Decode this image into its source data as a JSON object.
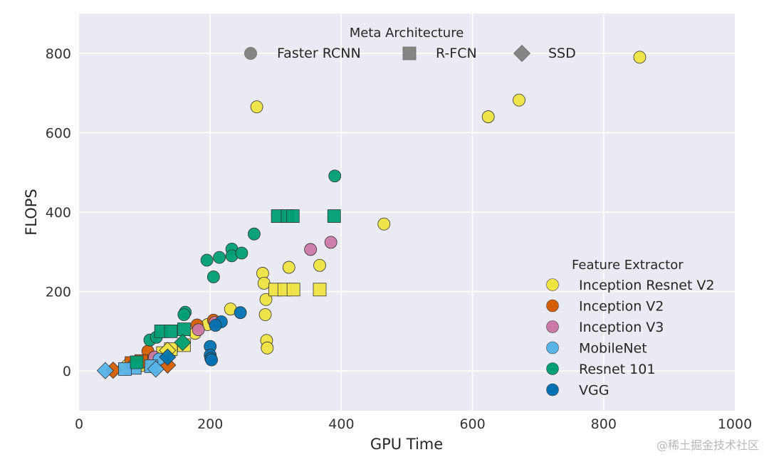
{
  "chart_data": {
    "type": "scatter",
    "title": "",
    "xlabel": "GPU Time",
    "ylabel": "FLOPS",
    "xlim": [
      0,
      1000
    ],
    "ylim": [
      -100,
      900
    ],
    "xticks": [
      0,
      200,
      400,
      600,
      800,
      1000
    ],
    "yticks": [
      0,
      200,
      400,
      600,
      800
    ],
    "grid": true,
    "meta_legend": {
      "title": "Meta Architecture",
      "placement": "top-center",
      "entries": [
        {
          "label": "Faster RCNN",
          "marker": "circle"
        },
        {
          "label": "R-FCN",
          "marker": "square"
        },
        {
          "label": "SSD",
          "marker": "diamond"
        }
      ]
    },
    "feature_legend": {
      "title": "Feature Extractor",
      "placement": "bottom-right",
      "entries": [
        {
          "label": "Inception Resnet V2",
          "color": "#f0e442"
        },
        {
          "label": "Inception V2",
          "color": "#d55e00"
        },
        {
          "label": "Inception V3",
          "color": "#cc79a7"
        },
        {
          "label": "MobileNet",
          "color": "#56b4e9"
        },
        {
          "label": "Resnet 101",
          "color": "#009e73"
        },
        {
          "label": "VGG",
          "color": "#0072b2"
        }
      ]
    },
    "series": [
      {
        "name": "Inception Resnet V2",
        "color": "#f0e442",
        "points": [
          {
            "x": 855,
            "y": 790,
            "m": "circle"
          },
          {
            "x": 671,
            "y": 682,
            "m": "circle"
          },
          {
            "x": 624,
            "y": 640,
            "m": "circle"
          },
          {
            "x": 271,
            "y": 665,
            "m": "circle"
          },
          {
            "x": 465,
            "y": 370,
            "m": "circle"
          },
          {
            "x": 367,
            "y": 266,
            "m": "circle"
          },
          {
            "x": 320,
            "y": 261,
            "m": "circle"
          },
          {
            "x": 280,
            "y": 246,
            "m": "circle"
          },
          {
            "x": 282,
            "y": 221,
            "m": "circle"
          },
          {
            "x": 285,
            "y": 180,
            "m": "circle"
          },
          {
            "x": 284,
            "y": 142,
            "m": "circle"
          },
          {
            "x": 286,
            "y": 77,
            "m": "circle"
          },
          {
            "x": 287,
            "y": 58,
            "m": "circle"
          },
          {
            "x": 231,
            "y": 156,
            "m": "circle"
          },
          {
            "x": 196,
            "y": 117,
            "m": "circle"
          },
          {
            "x": 177,
            "y": 95,
            "m": "circle"
          },
          {
            "x": 299,
            "y": 205,
            "m": "square"
          },
          {
            "x": 313,
            "y": 205,
            "m": "square"
          },
          {
            "x": 327,
            "y": 205,
            "m": "square"
          },
          {
            "x": 367,
            "y": 205,
            "m": "square"
          },
          {
            "x": 160,
            "y": 65,
            "m": "square"
          },
          {
            "x": 140,
            "y": 55,
            "m": "square"
          },
          {
            "x": 128,
            "y": 45,
            "m": "square"
          },
          {
            "x": 105,
            "y": 18,
            "m": "square"
          },
          {
            "x": 90,
            "y": 15,
            "m": "square"
          },
          {
            "x": 72,
            "y": 12,
            "m": "diamond"
          },
          {
            "x": 135,
            "y": 52,
            "m": "diamond"
          }
        ]
      },
      {
        "name": "Inception V2",
        "color": "#d55e00",
        "points": [
          {
            "x": 205,
            "y": 128,
            "m": "circle"
          },
          {
            "x": 180,
            "y": 116,
            "m": "circle"
          },
          {
            "x": 105,
            "y": 50,
            "m": "circle"
          },
          {
            "x": 95,
            "y": 25,
            "m": "square"
          },
          {
            "x": 80,
            "y": 20,
            "m": "square"
          },
          {
            "x": 135,
            "y": 15,
            "m": "diamond"
          },
          {
            "x": 52,
            "y": 2,
            "m": "diamond"
          }
        ]
      },
      {
        "name": "Inception V3",
        "color": "#cc79a7",
        "points": [
          {
            "x": 384,
            "y": 324,
            "m": "circle"
          },
          {
            "x": 353,
            "y": 306,
            "m": "circle"
          },
          {
            "x": 207,
            "y": 122,
            "m": "circle"
          },
          {
            "x": 182,
            "y": 104,
            "m": "circle"
          },
          {
            "x": 115,
            "y": 35,
            "m": "circle"
          }
        ]
      },
      {
        "name": "MobileNet",
        "color": "#56b4e9",
        "points": [
          {
            "x": 122,
            "y": 30,
            "m": "circle"
          },
          {
            "x": 85,
            "y": 8,
            "m": "square"
          },
          {
            "x": 70,
            "y": 5,
            "m": "square"
          },
          {
            "x": 110,
            "y": 12,
            "m": "square"
          },
          {
            "x": 40,
            "y": 1,
            "m": "diamond"
          },
          {
            "x": 117,
            "y": 5,
            "m": "diamond"
          }
        ]
      },
      {
        "name": "Resnet 101",
        "color": "#009e73",
        "points": [
          {
            "x": 390,
            "y": 491,
            "m": "circle"
          },
          {
            "x": 267,
            "y": 345,
            "m": "circle"
          },
          {
            "x": 233,
            "y": 307,
            "m": "circle"
          },
          {
            "x": 233,
            "y": 290,
            "m": "circle"
          },
          {
            "x": 248,
            "y": 297,
            "m": "circle"
          },
          {
            "x": 214,
            "y": 286,
            "m": "circle"
          },
          {
            "x": 195,
            "y": 279,
            "m": "circle"
          },
          {
            "x": 205,
            "y": 237,
            "m": "circle"
          },
          {
            "x": 162,
            "y": 148,
            "m": "circle"
          },
          {
            "x": 160,
            "y": 142,
            "m": "circle"
          },
          {
            "x": 108,
            "y": 78,
            "m": "circle"
          },
          {
            "x": 118,
            "y": 85,
            "m": "circle"
          },
          {
            "x": 303,
            "y": 390,
            "m": "square"
          },
          {
            "x": 318,
            "y": 390,
            "m": "square"
          },
          {
            "x": 326,
            "y": 390,
            "m": "square"
          },
          {
            "x": 389,
            "y": 390,
            "m": "square"
          },
          {
            "x": 125,
            "y": 100,
            "m": "square"
          },
          {
            "x": 140,
            "y": 100,
            "m": "square"
          },
          {
            "x": 160,
            "y": 105,
            "m": "square"
          },
          {
            "x": 88,
            "y": 22,
            "m": "square"
          },
          {
            "x": 158,
            "y": 72,
            "m": "diamond"
          }
        ]
      },
      {
        "name": "VGG",
        "color": "#0072b2",
        "points": [
          {
            "x": 246,
            "y": 147,
            "m": "circle"
          },
          {
            "x": 217,
            "y": 124,
            "m": "circle"
          },
          {
            "x": 208,
            "y": 115,
            "m": "circle"
          },
          {
            "x": 200,
            "y": 62,
            "m": "circle"
          },
          {
            "x": 200,
            "y": 40,
            "m": "circle"
          },
          {
            "x": 201,
            "y": 32,
            "m": "circle"
          },
          {
            "x": 202,
            "y": 28,
            "m": "circle"
          },
          {
            "x": 135,
            "y": 35,
            "m": "diamond"
          }
        ]
      }
    ]
  },
  "watermark": "@稀土掘金技术社区"
}
